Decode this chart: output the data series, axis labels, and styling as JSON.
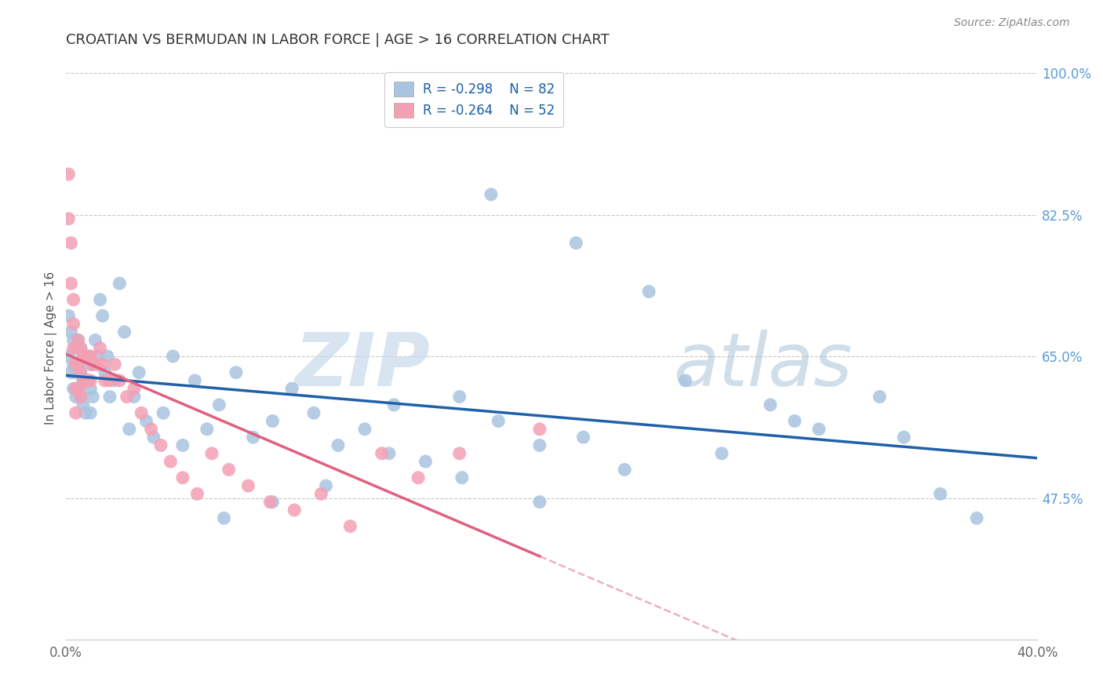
{
  "title": "CROATIAN VS BERMUDAN IN LABOR FORCE | AGE > 16 CORRELATION CHART",
  "source": "Source: ZipAtlas.com",
  "ylabel": "In Labor Force | Age > 16",
  "watermark_zip": "ZIP",
  "watermark_atlas": "atlas",
  "xlim": [
    0.0,
    0.4
  ],
  "ylim": [
    0.3,
    1.02
  ],
  "x_ticks": [
    0.0,
    0.1,
    0.2,
    0.3,
    0.4
  ],
  "x_tick_labels": [
    "0.0%",
    "",
    "",
    "",
    "40.0%"
  ],
  "y_tick_labels_right": [
    "100.0%",
    "82.5%",
    "65.0%",
    "47.5%"
  ],
  "y_tick_values_right": [
    1.0,
    0.825,
    0.65,
    0.475
  ],
  "croatian_R": -0.298,
  "croatian_N": 82,
  "bermudan_R": -0.264,
  "bermudan_N": 52,
  "croatian_color": "#a8c4e0",
  "bermudan_color": "#f4a0b4",
  "croatian_line_color": "#2060a8",
  "bermudan_line_color": "#e06080",
  "grid_color": "#c8c8c8",
  "background_color": "#ffffff",
  "title_color": "#333333",
  "right_label_color": "#5b9bd5",
  "croatians_x": [
    0.001,
    0.001,
    0.002,
    0.002,
    0.003,
    0.003,
    0.003,
    0.004,
    0.004,
    0.004,
    0.005,
    0.005,
    0.005,
    0.006,
    0.006,
    0.006,
    0.007,
    0.007,
    0.007,
    0.008,
    0.008,
    0.008,
    0.009,
    0.009,
    0.01,
    0.01,
    0.01,
    0.011,
    0.011,
    0.012,
    0.013,
    0.014,
    0.015,
    0.016,
    0.017,
    0.018,
    0.02,
    0.022,
    0.024,
    0.026,
    0.028,
    0.03,
    0.033,
    0.036,
    0.04,
    0.044,
    0.048,
    0.053,
    0.058,
    0.063,
    0.07,
    0.077,
    0.085,
    0.093,
    0.102,
    0.112,
    0.123,
    0.135,
    0.148,
    0.162,
    0.178,
    0.195,
    0.213,
    0.175,
    0.21,
    0.24,
    0.255,
    0.29,
    0.31,
    0.345,
    0.36,
    0.375,
    0.335,
    0.3,
    0.27,
    0.23,
    0.195,
    0.163,
    0.133,
    0.107,
    0.085,
    0.065
  ],
  "croatians_y": [
    0.7,
    0.65,
    0.68,
    0.63,
    0.67,
    0.64,
    0.61,
    0.66,
    0.63,
    0.6,
    0.67,
    0.64,
    0.61,
    0.66,
    0.63,
    0.6,
    0.65,
    0.62,
    0.59,
    0.65,
    0.62,
    0.58,
    0.65,
    0.62,
    0.64,
    0.61,
    0.58,
    0.64,
    0.6,
    0.67,
    0.65,
    0.72,
    0.7,
    0.63,
    0.65,
    0.6,
    0.62,
    0.74,
    0.68,
    0.56,
    0.6,
    0.63,
    0.57,
    0.55,
    0.58,
    0.65,
    0.54,
    0.62,
    0.56,
    0.59,
    0.63,
    0.55,
    0.57,
    0.61,
    0.58,
    0.54,
    0.56,
    0.59,
    0.52,
    0.6,
    0.57,
    0.54,
    0.55,
    0.85,
    0.79,
    0.73,
    0.62,
    0.59,
    0.56,
    0.55,
    0.48,
    0.45,
    0.6,
    0.57,
    0.53,
    0.51,
    0.47,
    0.5,
    0.53,
    0.49,
    0.47,
    0.45
  ],
  "bermudans_x": [
    0.001,
    0.001,
    0.002,
    0.002,
    0.003,
    0.003,
    0.003,
    0.004,
    0.004,
    0.004,
    0.005,
    0.005,
    0.005,
    0.006,
    0.006,
    0.006,
    0.007,
    0.007,
    0.008,
    0.008,
    0.009,
    0.009,
    0.01,
    0.01,
    0.011,
    0.012,
    0.013,
    0.014,
    0.015,
    0.016,
    0.018,
    0.02,
    0.022,
    0.025,
    0.028,
    0.031,
    0.035,
    0.039,
    0.043,
    0.048,
    0.054,
    0.06,
    0.067,
    0.075,
    0.084,
    0.094,
    0.105,
    0.117,
    0.13,
    0.145,
    0.162,
    0.195
  ],
  "bermudans_y": [
    0.875,
    0.82,
    0.79,
    0.74,
    0.72,
    0.69,
    0.66,
    0.64,
    0.61,
    0.58,
    0.67,
    0.64,
    0.61,
    0.66,
    0.63,
    0.6,
    0.65,
    0.62,
    0.65,
    0.62,
    0.65,
    0.62,
    0.65,
    0.62,
    0.64,
    0.64,
    0.64,
    0.66,
    0.64,
    0.62,
    0.62,
    0.64,
    0.62,
    0.6,
    0.61,
    0.58,
    0.56,
    0.54,
    0.52,
    0.5,
    0.48,
    0.53,
    0.51,
    0.49,
    0.47,
    0.46,
    0.48,
    0.44,
    0.53,
    0.5,
    0.53,
    0.56
  ]
}
